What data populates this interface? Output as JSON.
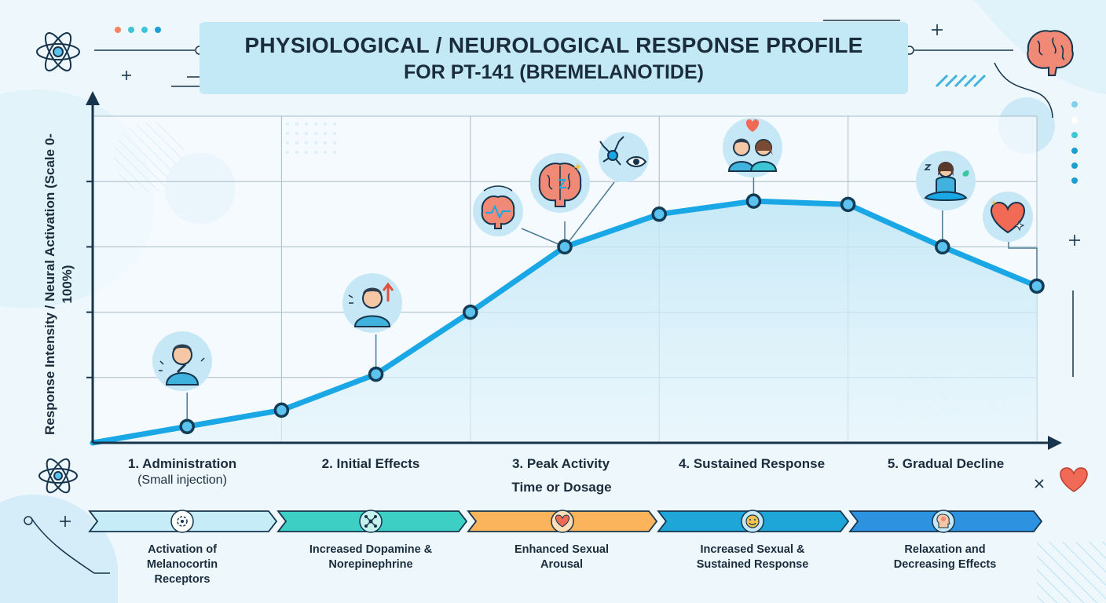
{
  "title": {
    "line1": "PHYSIOLOGICAL / NEUROLOGICAL RESPONSE PROFILE",
    "line2": "FOR PT-141 (BREMELANOTIDE)"
  },
  "colors": {
    "line": "#1aa7e6",
    "point_stroke": "#123b55",
    "point_fill": "#5cc3ee",
    "grid": "#a9bcc6",
    "axis": "#16344c"
  },
  "chart_data": {
    "type": "line",
    "title": "PHYSIOLOGICAL / NEUROLOGICAL RESPONSE PROFILE FOR PT-141 (BREMELANOTIDE)",
    "xlabel": "Time or Dosage",
    "ylabel": "Response Intensity / Neural Activation (Scale 0-100%)",
    "ylim": [
      0,
      100
    ],
    "xlim": [
      0,
      10
    ],
    "grid": true,
    "series": [
      {
        "name": "Response Intensity",
        "x": [
          0,
          1,
          2,
          3,
          4,
          5,
          6,
          7,
          8,
          9,
          10
        ],
        "values": [
          0,
          5,
          10,
          21,
          40,
          60,
          70,
          74,
          73,
          60,
          48
        ]
      }
    ],
    "phases": [
      {
        "label": "1. Administration",
        "sublabel": "(Small injection)",
        "x": 1
      },
      {
        "label": "2. Initial Effects",
        "x": 3
      },
      {
        "label": "3. Peak Activity",
        "x": 5
      },
      {
        "label": "4. Sustained Response",
        "x": 7
      },
      {
        "label": "5. Gradual Decline",
        "x": 9
      }
    ],
    "annotations": [
      {
        "icon": "person-injection-icon",
        "x": 1
      },
      {
        "icon": "person-alert-icon",
        "x": 3
      },
      {
        "icon": "brain-signal-icon",
        "x": 5
      },
      {
        "icon": "brain-lightning-icon",
        "x": 5
      },
      {
        "icon": "neuron-eye-icon",
        "x": 5
      },
      {
        "icon": "couple-heart-icon",
        "x": 7
      },
      {
        "icon": "meditation-icon",
        "x": 9
      },
      {
        "icon": "heart-sparkle-icon",
        "x": 10
      }
    ]
  },
  "stages": [
    {
      "label": "Activation of Melanocortin Receptors",
      "icon": "receptor-icon",
      "color": "#c6ecf8"
    },
    {
      "label": "Increased Dopamine & Norepinephrine",
      "icon": "molecule-icon",
      "color": "#3dcfc4"
    },
    {
      "label": "Enhanced Sexual Arousal",
      "icon": "heart-icon",
      "color": "#fbb35c"
    },
    {
      "label": "Increased Sexual & Sustained Response",
      "icon": "smile-icon",
      "color": "#1ea6d8"
    },
    {
      "label": "Relaxation and Decreasing Effects",
      "icon": "head-icon",
      "color": "#2d93e0"
    }
  ]
}
